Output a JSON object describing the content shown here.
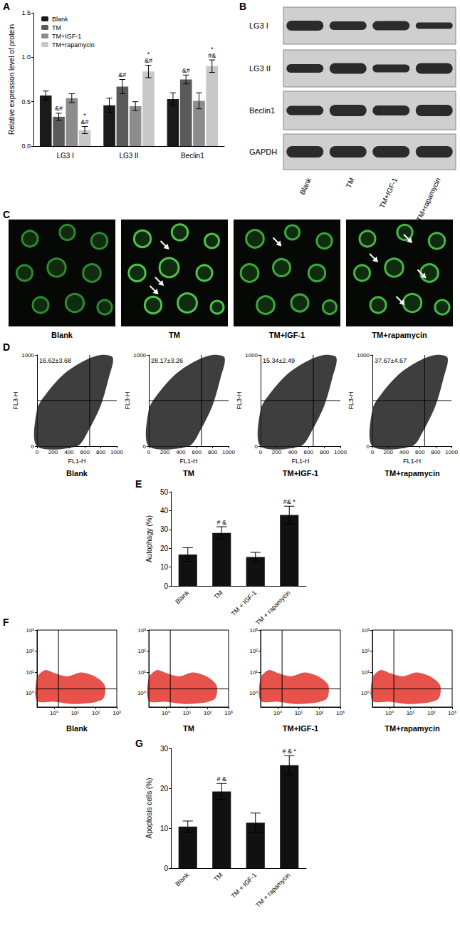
{
  "panel_labels": [
    "A",
    "B",
    "C",
    "D",
    "E",
    "F",
    "G"
  ],
  "chart_data": [
    {
      "type": "bar",
      "categories": [
        "LG3 I",
        "LG3 II",
        "Beclin1"
      ],
      "ylabel": "Relative expression level of protein",
      "ylim": [
        0,
        1.5
      ],
      "yticks": [
        {
          "value": 0,
          "label": "0.0"
        },
        {
          "value": 0.5,
          "label": "0.5"
        },
        {
          "value": 1,
          "label": "1.0"
        },
        {
          "value": 1.5,
          "label": "1.5"
        }
      ],
      "legend": "upper left",
      "series": [
        {
          "name": "Blank",
          "color": "#1a1a1a",
          "values": [
            0.57,
            0.46,
            0.53
          ],
          "errors": [
            0.05,
            0.08,
            0.07
          ],
          "significance": [
            null,
            null,
            null
          ]
        },
        {
          "name": "TM",
          "color": "#5a5a5a",
          "values": [
            0.33,
            0.67,
            0.75
          ],
          "errors": [
            0.04,
            0.08,
            0.05
          ],
          "significance": [
            "&#",
            "&#",
            "&#"
          ]
        },
        {
          "name": "TM+IGF-1",
          "color": "#8c8c8c",
          "values": [
            0.54,
            0.45,
            0.51
          ],
          "errors": [
            0.05,
            0.05,
            0.09
          ],
          "significance": [
            null,
            null,
            null
          ]
        },
        {
          "name": "TM+rapamycin",
          "color": "#c8c8c8",
          "values": [
            0.18,
            0.84,
            0.9
          ],
          "errors": [
            0.04,
            0.07,
            0.07
          ],
          "significance": [
            "*\n&#",
            "*\n&#",
            "*\n#&"
          ]
        }
      ]
    },
    {
      "type": "scatter",
      "title": "Blank",
      "xlabel": "FL1-H",
      "ylabel": "FL3-H",
      "xlim": [
        0,
        1000
      ],
      "xticks": [
        0,
        200,
        400,
        600,
        800,
        1000
      ],
      "ylim": [
        0,
        1000
      ],
      "yticks": [
        0,
        1000
      ],
      "gates": {
        "x": 660,
        "y": 500
      },
      "annotation": "16.62±3.68"
    },
    {
      "type": "scatter",
      "title": "TM",
      "xlabel": "FL1-H",
      "ylabel": "FL3-H",
      "xlim": [
        0,
        1000
      ],
      "xticks": [
        0,
        200,
        400,
        600,
        800,
        1000
      ],
      "ylim": [
        0,
        1000
      ],
      "yticks": [
        0,
        1000
      ],
      "gates": {
        "x": 660,
        "y": 500
      },
      "annotation": "28.17±3.26"
    },
    {
      "type": "scatter",
      "title": "TM+IGF-1",
      "xlabel": "FL1-H",
      "ylabel": "FL3-H",
      "xlim": [
        0,
        1000
      ],
      "xticks": [
        0,
        200,
        400,
        600,
        800,
        1000
      ],
      "ylim": [
        0,
        1000
      ],
      "yticks": [
        0,
        1000
      ],
      "gates": {
        "x": 660,
        "y": 500
      },
      "annotation": "15.34±2.49"
    },
    {
      "type": "scatter",
      "title": "TM+rapamycin",
      "xlabel": "FL1-H",
      "ylabel": "FL3-H",
      "xlim": [
        0,
        1000
      ],
      "xticks": [
        0,
        200,
        400,
        600,
        800,
        1000
      ],
      "ylim": [
        0,
        1000
      ],
      "yticks": [
        0,
        1000
      ],
      "gates": {
        "x": 660,
        "y": 500
      },
      "annotation": "37.67±4.67"
    },
    {
      "type": "bar",
      "categories": [
        "Blank",
        "TM",
        "TM + IGF-1",
        "TM + rapamycin"
      ],
      "values": [
        16.62,
        28.17,
        15.34,
        37.67
      ],
      "errors": [
        3.68,
        3.26,
        2.49,
        4.67
      ],
      "significance": [
        null,
        "# &",
        null,
        "#& *"
      ],
      "color": "#111111",
      "ylabel": "Autophagy (%)",
      "ylim": [
        0,
        50
      ],
      "yticks": [
        0,
        10,
        20,
        30,
        40,
        50
      ]
    },
    {
      "type": "scatter",
      "title": "Blank",
      "log": true,
      "xlim": [
        0.15,
        1000
      ],
      "xticks": [
        {
          "value": 1,
          "label": "10⁰"
        },
        {
          "value": 10,
          "label": "10¹"
        },
        {
          "value": 100,
          "label": "10²"
        },
        {
          "value": 1000,
          "label": "10³"
        }
      ],
      "ylim": [
        0.22,
        1000
      ],
      "yticks": [
        {
          "value": 1,
          "label": "10⁰"
        },
        {
          "value": 10,
          "label": "10¹"
        },
        {
          "value": 100,
          "label": "10²"
        },
        {
          "value": 1000,
          "label": "10³"
        }
      ],
      "gates": {
        "x": 1.6,
        "y": 1.6
      }
    },
    {
      "type": "scatter",
      "title": "TM",
      "log": true,
      "xlim": [
        0.15,
        1000
      ],
      "xticks": [
        {
          "value": 1,
          "label": "10⁰"
        },
        {
          "value": 10,
          "label": "10¹"
        },
        {
          "value": 100,
          "label": "10²"
        },
        {
          "value": 1000,
          "label": "10³"
        }
      ],
      "ylim": [
        0.22,
        1000
      ],
      "yticks": [
        {
          "value": 1,
          "label": "10⁰"
        },
        {
          "value": 10,
          "label": "10¹"
        },
        {
          "value": 100,
          "label": "10²"
        },
        {
          "value": 1000,
          "label": "10³"
        }
      ],
      "gates": {
        "x": 1.6,
        "y": 1.6
      }
    },
    {
      "type": "scatter",
      "title": "TM+IGF-1",
      "log": true,
      "xlim": [
        0.15,
        1000
      ],
      "xticks": [
        {
          "value": 1,
          "label": "10⁰"
        },
        {
          "value": 10,
          "label": "10¹"
        },
        {
          "value": 100,
          "label": "10²"
        },
        {
          "value": 1000,
          "label": "10³"
        }
      ],
      "ylim": [
        0.22,
        1000
      ],
      "yticks": [
        {
          "value": 1,
          "label": "10⁰"
        },
        {
          "value": 10,
          "label": "10¹"
        },
        {
          "value": 100,
          "label": "10²"
        },
        {
          "value": 1000,
          "label": "10³"
        }
      ],
      "gates": {
        "x": 1.6,
        "y": 1.6
      }
    },
    {
      "type": "scatter",
      "title": "TM+rapamycin",
      "log": true,
      "xlim": [
        0.15,
        1000
      ],
      "xticks": [
        {
          "value": 1,
          "label": "10⁰"
        },
        {
          "value": 10,
          "label": "10¹"
        },
        {
          "value": 100,
          "label": "10²"
        },
        {
          "value": 1000,
          "label": "10³"
        }
      ],
      "ylim": [
        0.22,
        1000
      ],
      "yticks": [
        {
          "value": 1,
          "label": "10⁰"
        },
        {
          "value": 10,
          "label": "10¹"
        },
        {
          "value": 100,
          "label": "10²"
        },
        {
          "value": 1000,
          "label": "10³"
        }
      ],
      "gates": {
        "x": 1.6,
        "y": 1.6
      }
    },
    {
      "type": "bar",
      "categories": [
        "Blank",
        "TM",
        "TM + IGF-1",
        "TM + rapamycin"
      ],
      "values": [
        10.4,
        19.2,
        11.4,
        25.8
      ],
      "errors": [
        1.4,
        2.0,
        2.4,
        2.4
      ],
      "significance": [
        null,
        "# &",
        null,
        "# & *"
      ],
      "color": "#111111",
      "ylabel": "Apoptosis cells (%)",
      "ylim": [
        0,
        30
      ],
      "yticks": [
        0,
        10,
        20,
        30
      ]
    }
  ],
  "blot": {
    "rows": [
      "LG3 I",
      "LG3 II",
      "Beclin1",
      "GAPDH"
    ],
    "lanes": [
      "Blank",
      "TM",
      "TM+IGF-1",
      "TM+rapamycin"
    ]
  },
  "micrographs": {
    "titles": [
      "Blank",
      "TM",
      "TM+IGF-1",
      "TM+rapamycin"
    ]
  }
}
